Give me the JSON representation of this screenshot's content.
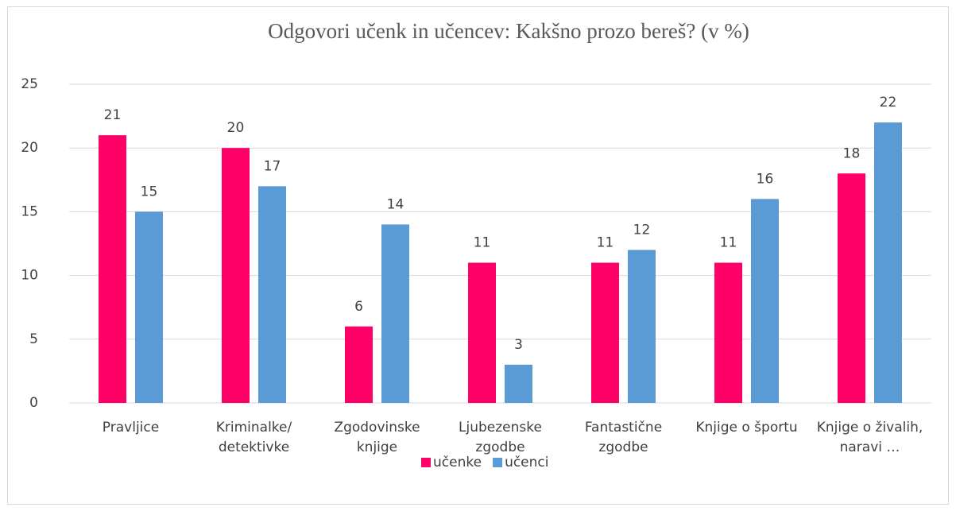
{
  "chart_data": {
    "type": "bar",
    "title": "Odgovori učenk in učencev: Kakšno prozo bereš? (v %)",
    "categories": [
      "Pravljice",
      "Kriminalke/ detektivke",
      "Zgodovinske knjige",
      "Ljubezenske zgodbe",
      "Fantastične zgodbe",
      "Knjige o športu",
      "Knjige o živalih, naravi …"
    ],
    "series": [
      {
        "name": "učenke",
        "color": "#ff0066",
        "values": [
          21,
          20,
          6,
          11,
          11,
          11,
          18
        ]
      },
      {
        "name": "učenci",
        "color": "#5b9bd5",
        "values": [
          15,
          17,
          14,
          3,
          12,
          16,
          22
        ]
      }
    ],
    "ylim": [
      0,
      25
    ],
    "yticks": [
      0,
      5,
      10,
      15,
      20,
      25
    ],
    "grid": true,
    "legend": "bottom"
  }
}
